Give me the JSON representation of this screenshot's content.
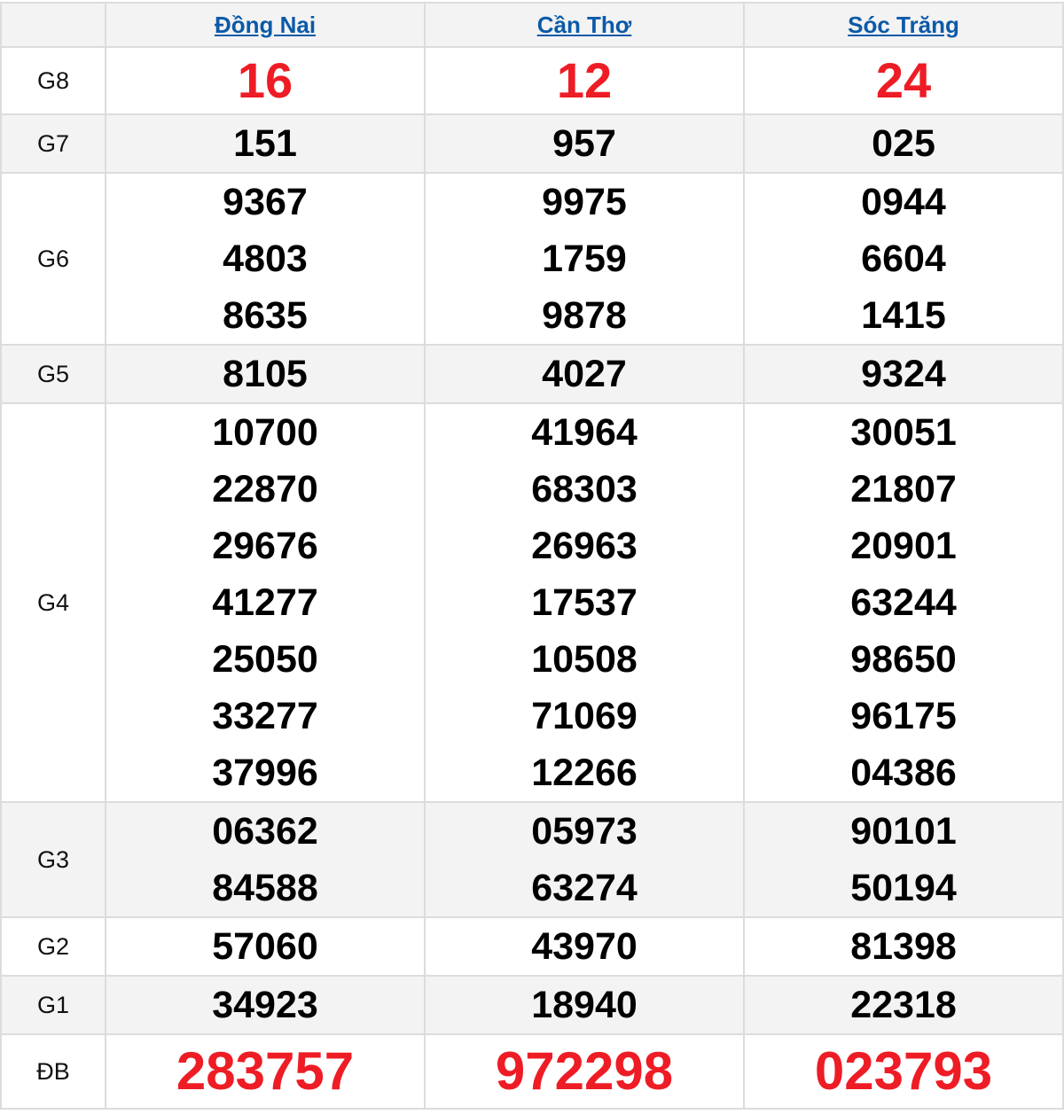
{
  "provinces": [
    "Đồng Nai",
    "Cần Thơ",
    "Sóc Trăng"
  ],
  "accent_color": "#ee1c25",
  "link_color": "#0b5aa8",
  "prizes": [
    {
      "label": "G8",
      "style": "g8",
      "alt": false,
      "values": [
        [
          "16"
        ],
        [
          "12"
        ],
        [
          "24"
        ]
      ]
    },
    {
      "label": "G7",
      "style": "",
      "alt": true,
      "values": [
        [
          "151"
        ],
        [
          "957"
        ],
        [
          "025"
        ]
      ]
    },
    {
      "label": "G6",
      "style": "",
      "alt": false,
      "values": [
        [
          "9367",
          "4803",
          "8635"
        ],
        [
          "9975",
          "1759",
          "9878"
        ],
        [
          "0944",
          "6604",
          "1415"
        ]
      ]
    },
    {
      "label": "G5",
      "style": "",
      "alt": true,
      "values": [
        [
          "8105"
        ],
        [
          "4027"
        ],
        [
          "9324"
        ]
      ]
    },
    {
      "label": "G4",
      "style": "",
      "alt": false,
      "values": [
        [
          "10700",
          "22870",
          "29676",
          "41277",
          "25050",
          "33277",
          "37996"
        ],
        [
          "41964",
          "68303",
          "26963",
          "17537",
          "10508",
          "71069",
          "12266"
        ],
        [
          "30051",
          "21807",
          "20901",
          "63244",
          "98650",
          "96175",
          "04386"
        ]
      ]
    },
    {
      "label": "G3",
      "style": "",
      "alt": true,
      "values": [
        [
          "06362",
          "84588"
        ],
        [
          "05973",
          "63274"
        ],
        [
          "90101",
          "50194"
        ]
      ]
    },
    {
      "label": "G2",
      "style": "",
      "alt": false,
      "values": [
        [
          "57060"
        ],
        [
          "43970"
        ],
        [
          "81398"
        ]
      ]
    },
    {
      "label": "G1",
      "style": "",
      "alt": true,
      "values": [
        [
          "34923"
        ],
        [
          "18940"
        ],
        [
          "22318"
        ]
      ]
    },
    {
      "label": "ĐB",
      "style": "db",
      "alt": false,
      "values": [
        [
          "283757"
        ],
        [
          "972298"
        ],
        [
          "023793"
        ]
      ]
    }
  ]
}
